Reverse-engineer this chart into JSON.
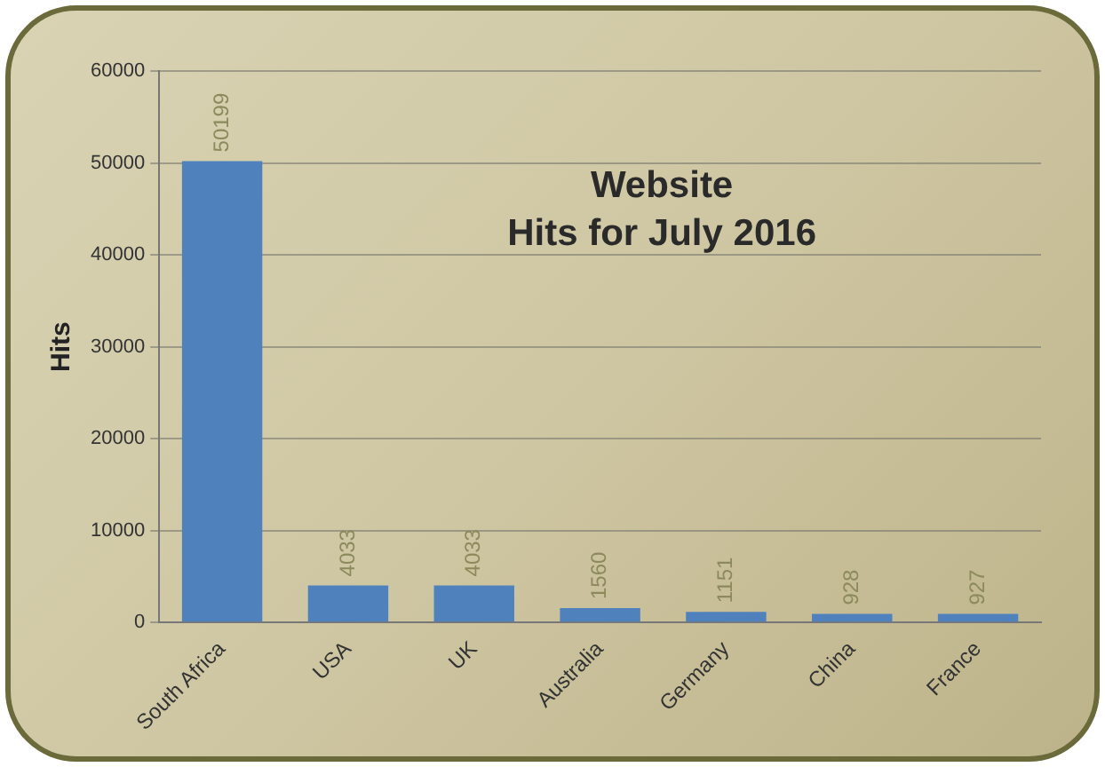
{
  "chart_data": {
    "type": "bar",
    "title": "Website\nHits for July 2016",
    "ylabel": "Hits",
    "categories": [
      "South Africa",
      "USA",
      "UK",
      "Australia",
      "Germany",
      "China",
      "France"
    ],
    "values": [
      50199,
      4033,
      4033,
      1560,
      1151,
      928,
      927
    ],
    "color": "#4f81bd",
    "data_labels": true,
    "ylim": [
      0,
      60000
    ],
    "yticks": [
      0,
      10000,
      20000,
      30000,
      40000,
      50000,
      60000
    ],
    "grid": "y",
    "legend": false
  }
}
